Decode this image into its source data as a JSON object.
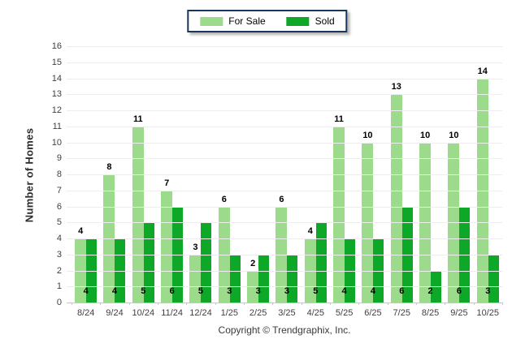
{
  "chart_data": {
    "type": "bar",
    "title": "",
    "categories": [
      "8/24",
      "9/24",
      "10/24",
      "11/24",
      "12/24",
      "1/25",
      "2/25",
      "3/25",
      "4/25",
      "5/25",
      "6/25",
      "7/25",
      "8/25",
      "9/25",
      "10/25"
    ],
    "series": [
      {
        "name": "For Sale",
        "color": "#9CDB8C",
        "values": [
          4,
          8,
          11,
          7,
          3,
          6,
          2,
          6,
          4,
          11,
          10,
          13,
          10,
          10,
          14
        ],
        "label_position": "above-bar"
      },
      {
        "name": "Sold",
        "color": "#0DA828",
        "values": [
          4,
          4,
          5,
          6,
          5,
          3,
          3,
          3,
          5,
          4,
          4,
          6,
          2,
          6,
          3
        ],
        "label_position": "inside-bar-bottom"
      }
    ],
    "xlabel": "",
    "ylabel": "Number of Homes",
    "ylim": [
      0,
      16
    ],
    "ytick_step": 1,
    "grid": true,
    "legend_position": "top-center"
  },
  "legend": {
    "items": [
      {
        "label": "For Sale",
        "color": "#9CDB8C"
      },
      {
        "label": "Sold",
        "color": "#0DA828"
      }
    ]
  },
  "axes": {
    "y_title": "Number of Homes"
  },
  "footer": {
    "copyright": "Copyright © Trendgraphix, Inc."
  },
  "colors": {
    "for_sale": "#9CDB8C",
    "sold": "#0DA828",
    "gridline": "#ededed",
    "axis_line": "#c6c6c6",
    "legend_border": "#17375D",
    "tick_text": "#3f3f3f",
    "value_label_text": "#000000"
  }
}
